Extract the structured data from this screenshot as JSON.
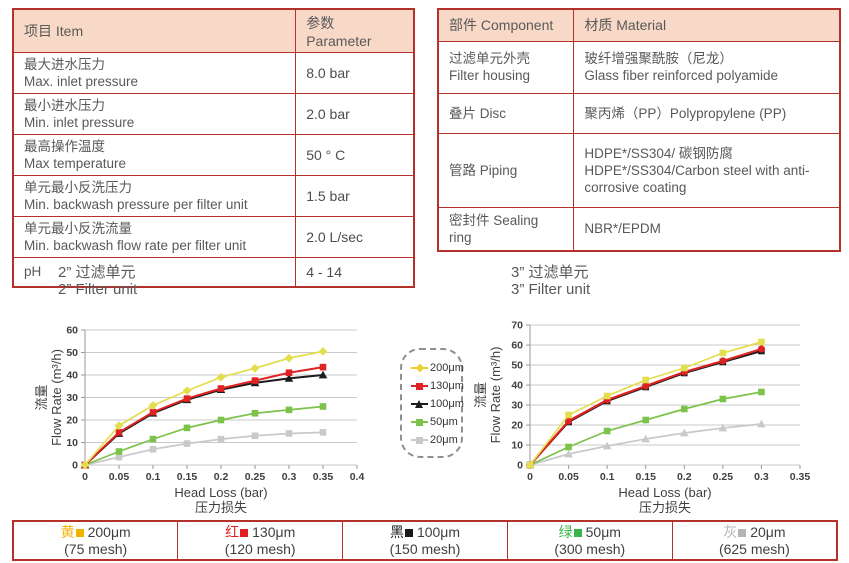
{
  "colors": {
    "table_border": "#b5322c",
    "header_bg": "#f8d9c7",
    "text_gray": "#595959",
    "gridline": "#c9c9c9"
  },
  "spec_table": {
    "col_item": "项目 Item",
    "col_param": "参数 Parameter",
    "rows": [
      {
        "zh": "最大进水压力",
        "en": "Max. inlet pressure",
        "value": "8.0 bar"
      },
      {
        "zh": "最小进水压力",
        "en": "Min. inlet pressure",
        "value": "2.0 bar"
      },
      {
        "zh": "最高操作温度",
        "en": "Max temperature",
        "value": "50 ° C"
      },
      {
        "zh": "单元最小反洗压力",
        "en": "Min. backwash pressure per filter unit",
        "value": "1.5 bar"
      },
      {
        "zh": "单元最小反洗流量",
        "en": "Min. backwash flow rate per filter unit",
        "value": "2.0 L/sec"
      },
      {
        "zh": "pH",
        "en": "",
        "value": "4 - 14"
      }
    ]
  },
  "material_table": {
    "col_component": "部件 Component",
    "col_material": "材质 Material",
    "rows": [
      {
        "zh": "过滤单元外壳",
        "en": "Filter housing",
        "mat_zh": "玻纤增强聚酰胺（尼龙）",
        "mat_en": "Glass fiber reinforced polyamide"
      },
      {
        "zh": "叠片 Disc",
        "en": "",
        "mat_zh": "聚丙烯（PP）Polypropylene (PP)",
        "mat_en": ""
      },
      {
        "zh": "管路 Piping",
        "en": "",
        "mat_zh": "HDPE*/SS304/ 碳钢防腐",
        "mat_en": "HDPE*/SS304/Carbon steel with anti-corrosive coating"
      },
      {
        "zh": "密封件 Sealing ring",
        "en": "",
        "mat_zh": "NBR*/EPDM",
        "mat_en": ""
      }
    ]
  },
  "chart_data": [
    {
      "type": "line",
      "title_line1": "2”  过滤单元",
      "title_line2": "2”  Filter unit",
      "ylabel_line1": "流量",
      "ylabel_line2": "Flow Rate (m³/h)",
      "xlabel_line1": "Head Loss (bar)",
      "xlabel_line2": "压力损失",
      "xlim": [
        0,
        0.4
      ],
      "ylim": [
        0,
        60
      ],
      "yticks": [
        0,
        10,
        20,
        30,
        40,
        50,
        60
      ],
      "xticks": [
        {
          "v": 0,
          "label": "0"
        },
        {
          "v": 0.05,
          "label": "0.05"
        },
        {
          "v": 0.1,
          "label": "0.1"
        },
        {
          "v": 0.15,
          "label": "0.15"
        },
        {
          "v": 0.2,
          "label": "0.2"
        },
        {
          "v": 0.25,
          "label": "0.25"
        },
        {
          "v": 0.3,
          "label": "0.3"
        },
        {
          "v": 0.35,
          "label": "0.35"
        },
        {
          "v": 0.4,
          "label": "0.4"
        }
      ],
      "x": [
        0,
        0.05,
        0.1,
        0.15,
        0.2,
        0.25,
        0.3,
        0.35
      ],
      "grid": true,
      "legend_position": "right-external",
      "series": [
        {
          "name": "200μm",
          "color": "#e3de4d",
          "marker": "diamond",
          "width": 1.7,
          "values": [
            0,
            17.5,
            26.5,
            33,
            39,
            43,
            47.5,
            50.5
          ]
        },
        {
          "name": "130μm",
          "color": "#dd2423",
          "marker": "square",
          "width": 2,
          "values": [
            0,
            14.5,
            23.5,
            29.5,
            34,
            37.5,
            41,
            43.5
          ]
        },
        {
          "name": "100μm",
          "color": "#1c1c1c",
          "marker": "triangle",
          "width": 2,
          "values": [
            0,
            14,
            23,
            29,
            33.5,
            36.5,
            38.5,
            40
          ]
        },
        {
          "name": "50μm",
          "color": "#7dc24b",
          "marker": "square",
          "width": 1.7,
          "values": [
            0,
            6,
            11.5,
            16.5,
            20,
            23,
            24.5,
            26
          ]
        },
        {
          "name": "20μm",
          "color": "#c9c9c9",
          "marker": "square",
          "width": 1.7,
          "values": [
            0,
            3.5,
            7,
            9.5,
            11.5,
            13,
            14,
            14.5
          ]
        }
      ]
    },
    {
      "type": "line",
      "title_line1": "3”  过滤单元",
      "title_line2": "3”  Filter unit",
      "ylabel_line1": "流量",
      "ylabel_line2": "Flow Rate (m³/h)",
      "xlabel_line1": "Head Loss (bar)",
      "xlabel_line2": "压力损失",
      "xlim": [
        0,
        0.35
      ],
      "ylim": [
        0,
        70
      ],
      "yticks": [
        0,
        10,
        20,
        30,
        40,
        50,
        60,
        70
      ],
      "xticks": [
        {
          "v": 0,
          "label": "0"
        },
        {
          "v": 0.05,
          "label": "0.05"
        },
        {
          "v": 0.1,
          "label": "0.1"
        },
        {
          "v": 0.15,
          "label": "0.15"
        },
        {
          "v": 0.2,
          "label": "0.2"
        },
        {
          "v": 0.25,
          "label": "0.25"
        },
        {
          "v": 0.3,
          "label": "0.3"
        },
        {
          "v": 0.35,
          "label": "0.35"
        }
      ],
      "x": [
        0,
        0.05,
        0.1,
        0.15,
        0.2,
        0.25,
        0.3
      ],
      "grid": true,
      "series": [
        {
          "name": "200μm",
          "color": "#e3de4d",
          "marker": "square",
          "width": 1.7,
          "values": [
            0,
            25,
            34.5,
            42.5,
            48.5,
            56,
            61.5
          ]
        },
        {
          "name": "130μm",
          "color": "#dd2423",
          "marker": "circle",
          "width": 2.2,
          "values": [
            0,
            22,
            32.5,
            39.5,
            46.5,
            52,
            58
          ]
        },
        {
          "name": "100μm",
          "color": "#1c1c1c",
          "marker": "square",
          "width": 2,
          "values": [
            0,
            21.5,
            32,
            39,
            46,
            51.5,
            57
          ]
        },
        {
          "name": "50μm",
          "color": "#7dc24b",
          "marker": "square",
          "width": 1.7,
          "values": [
            0,
            9,
            17,
            22.5,
            28,
            33,
            36.5
          ]
        },
        {
          "name": "20μm",
          "color": "#c9c9c9",
          "marker": "triangle",
          "width": 1.7,
          "values": [
            0,
            5.5,
            9.5,
            13,
            16,
            18.5,
            20.5
          ]
        }
      ]
    }
  ],
  "legend_box": {
    "items": [
      {
        "label": "200μm",
        "color": "#e8cf2e",
        "marker": "diamond"
      },
      {
        "label": "130μm",
        "color": "#dd2423",
        "marker": "square"
      },
      {
        "label": "100μm",
        "color": "#1c1c1c",
        "marker": "triangle"
      },
      {
        "label": "50μm",
        "color": "#7dc24b",
        "marker": "square"
      },
      {
        "label": "20μm",
        "color": "#c9c9c9",
        "marker": "square"
      }
    ]
  },
  "bottom_legend": {
    "cells": [
      {
        "color_zh": "黄",
        "color_hex": "#f0b400",
        "size": "200μm",
        "mesh": "(75 mesh)"
      },
      {
        "color_zh": "红",
        "color_hex": "#e02020",
        "size": "130μm",
        "mesh": "(120 mesh)"
      },
      {
        "color_zh": "黑",
        "color_hex": "#1a1a1a",
        "size": "100μm",
        "mesh": "(150 mesh)"
      },
      {
        "color_zh": "绿",
        "color_hex": "#3cb44a",
        "size": "50μm",
        "mesh": "(300 mesh)"
      },
      {
        "color_zh": "灰",
        "color_hex": "#b5b5b5",
        "size": "20μm",
        "mesh": "(625 mesh)"
      }
    ]
  }
}
